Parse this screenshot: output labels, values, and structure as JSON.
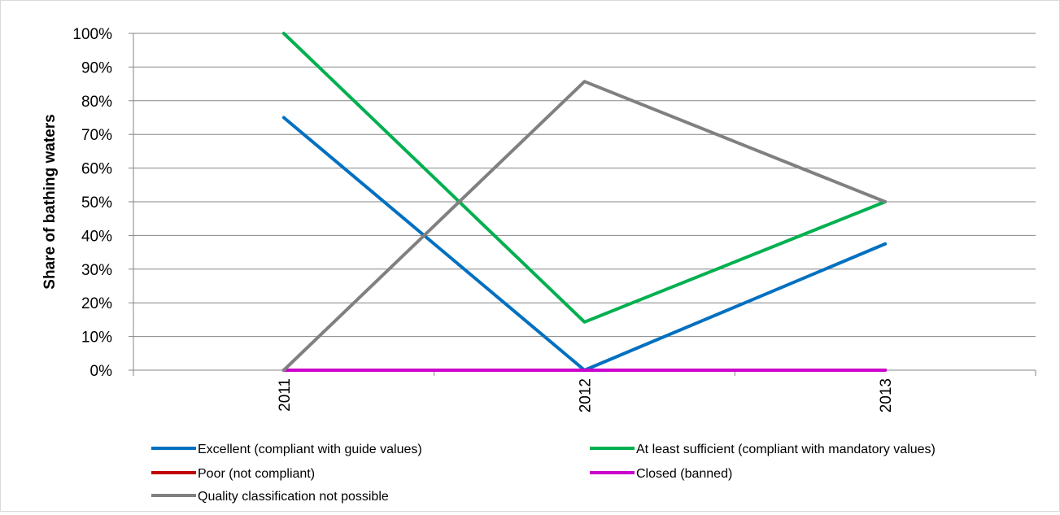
{
  "chart_data": {
    "type": "line",
    "title": "",
    "xlabel": "",
    "ylabel": "Share of bathing waters",
    "x": [
      "2011",
      "2012",
      "2013"
    ],
    "ylim": [
      0,
      100
    ],
    "y_ticks": [
      "0%",
      "10%",
      "20%",
      "30%",
      "40%",
      "50%",
      "60%",
      "70%",
      "80%",
      "90%",
      "100%"
    ],
    "grid": true,
    "legend_position": "bottom",
    "series": [
      {
        "name": "Excellent (compliant with guide values)",
        "color": "#0070c0",
        "values": [
          75,
          0,
          37.5
        ]
      },
      {
        "name": "At least sufficient (compliant with mandatory values)",
        "color": "#00b050",
        "values": [
          100,
          14.3,
          50
        ]
      },
      {
        "name": "Poor (not compliant)",
        "color": "#c00000",
        "values": [
          0,
          0,
          0
        ]
      },
      {
        "name": "Closed (banned)",
        "color": "#cc00cc",
        "values": [
          0,
          0,
          0
        ]
      },
      {
        "name": "Quality classification not possible",
        "color": "#808080",
        "values": [
          0,
          85.7,
          50
        ]
      }
    ]
  }
}
